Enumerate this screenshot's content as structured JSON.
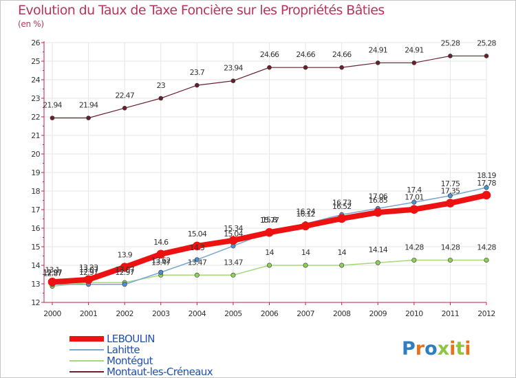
{
  "title": "Evolution du Taux de Taxe Foncière sur les Propriétés Bâties",
  "unit": "(en %)",
  "logo": {
    "text": "Proxiti",
    "letter_colors": [
      "#2e7ec2",
      "#e5731d",
      "#2e7ec2",
      "#8dc63f",
      "#e5731d",
      "#8dc63f",
      "#e5731d"
    ]
  },
  "colors": {
    "axis": "#c41d49",
    "grid": "#e6e6e6",
    "marker_stroke": "#333333"
  },
  "chart_data": {
    "type": "line",
    "title": "Evolution du Taux de Taxe Foncière sur les Propriétés Bâties",
    "xlabel": "",
    "ylabel": "(en %)",
    "ylim": [
      12,
      26
    ],
    "y_ticks": [
      12,
      13,
      14,
      15,
      16,
      17,
      18,
      19,
      20,
      21,
      22,
      23,
      24,
      25,
      26
    ],
    "x": [
      2000,
      2001,
      2002,
      2003,
      2004,
      2005,
      2006,
      2007,
      2008,
      2009,
      2010,
      2011,
      2012
    ],
    "series": [
      {
        "name": "Montaut-les-Créneaux",
        "color": "#6b1f2e",
        "marker": "#6b1f2e",
        "width": 1.2,
        "r": 3,
        "values": [
          21.94,
          21.94,
          22.47,
          23,
          23.7,
          23.94,
          24.66,
          24.66,
          24.66,
          24.91,
          24.91,
          25.28,
          25.28
        ],
        "labels": [
          "21.94",
          "21.94",
          "22.47",
          "23",
          "23.7",
          "23.94",
          "24.66",
          "24.66",
          "24.66",
          "24.91",
          "24.91",
          "25.28",
          "25.28"
        ]
      },
      {
        "name": "Montégut",
        "color": "#a4d97b",
        "marker": "#8fd058",
        "width": 1.5,
        "r": 3.2,
        "values": [
          12.87,
          13.07,
          13.07,
          13.47,
          13.47,
          13.47,
          14,
          14,
          14,
          14.14,
          14.28,
          14.28,
          14.28
        ],
        "labels": [
          "12.87",
          "13.07",
          "13.07",
          "13.47",
          "13.47",
          "13.47",
          "14",
          "14",
          "14",
          "14.14",
          "14.28",
          "14.28",
          "14.28"
        ]
      },
      {
        "name": "Lahitte",
        "color": "#78a6cf",
        "marker": "#4f8fd0",
        "width": 1.5,
        "r": 3.2,
        "values": [
          12.97,
          12.97,
          12.97,
          13.62,
          14.3,
          15.04,
          15.8,
          16.24,
          16.73,
          17.06,
          17.4,
          17.75,
          18.19
        ],
        "labels": [
          "12.97",
          "12.97",
          "12.97",
          "13.62",
          "14.3",
          "15.04",
          "15.8",
          "16.24",
          "16.73",
          "17.06",
          "17.4",
          "17.75",
          "18.19"
        ]
      },
      {
        "name": "LEBOULIN",
        "color": "#ee1111",
        "marker": "#ee1111",
        "width": 8,
        "r": 6,
        "values": [
          13.1,
          13.23,
          13.9,
          14.6,
          15.04,
          15.34,
          15.77,
          16.12,
          16.52,
          16.85,
          17.01,
          17.35,
          17.78
        ],
        "labels": [
          "13.1",
          "13.23",
          "13.9",
          "14.6",
          "15.04",
          "15.34",
          "15.77",
          "16.12",
          "16.52",
          "16.85",
          "17.01",
          "17.35",
          "17.78"
        ]
      }
    ],
    "legend": {
      "position": "bottom-left",
      "order": [
        "LEBOULIN",
        "Lahitte",
        "Montégut",
        "Montaut-les-Créneaux"
      ]
    }
  }
}
